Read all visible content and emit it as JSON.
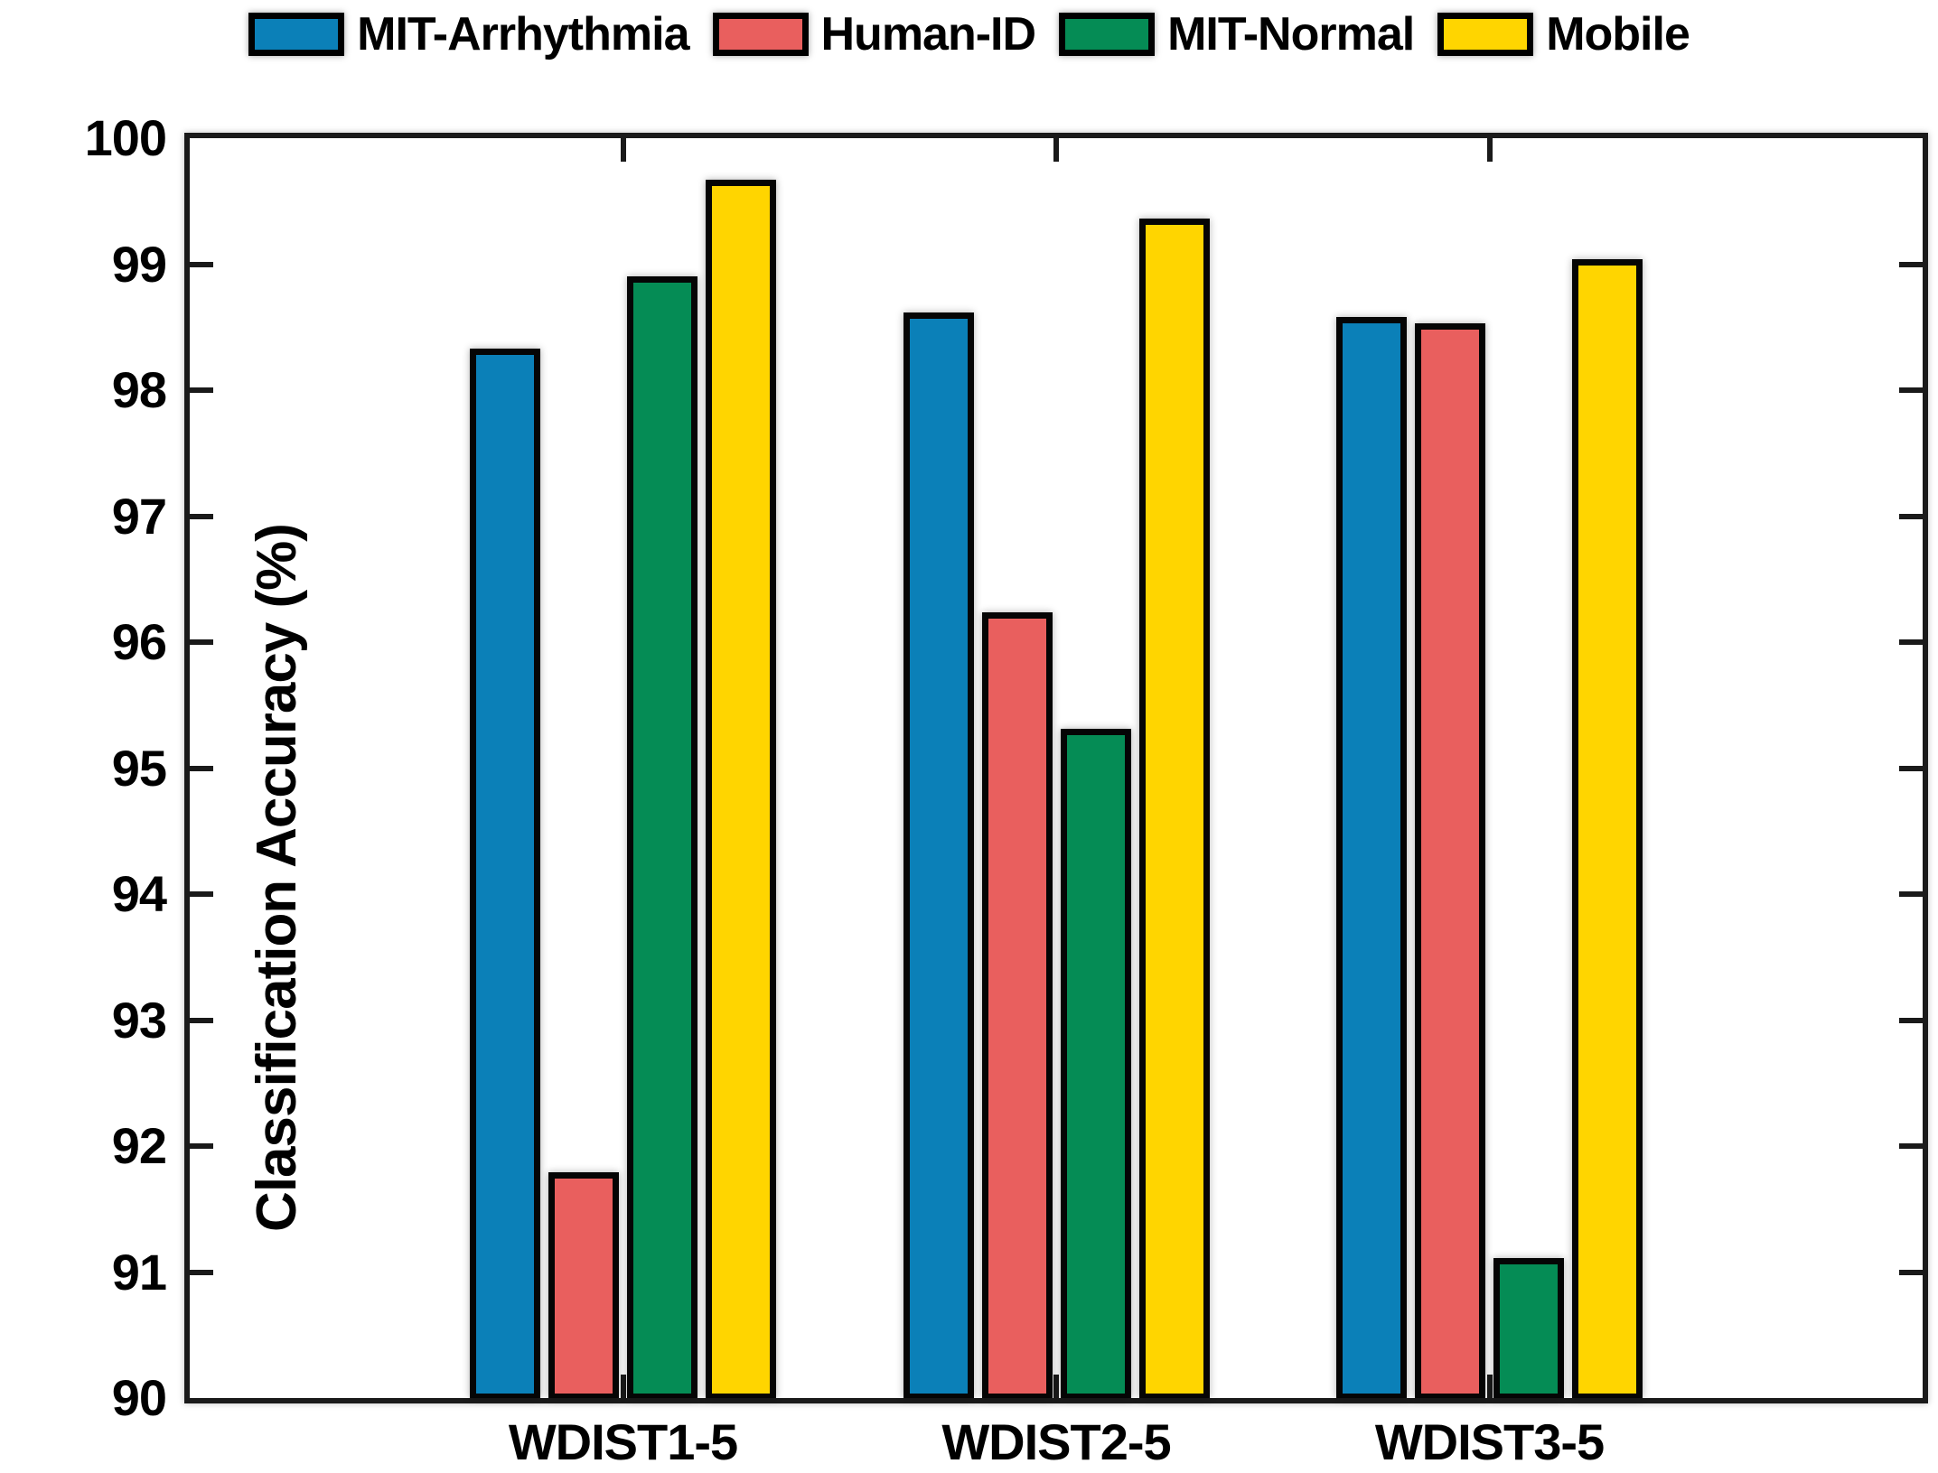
{
  "figure": {
    "background": "#ffffff",
    "axis_color": "#1a1a1a"
  },
  "chart_data": {
    "type": "bar",
    "title": "",
    "xlabel": "",
    "ylabel": "Classification Accuracy (%)",
    "categories": [
      "WDIST1-5",
      "WDIST2-5",
      "WDIST3-5"
    ],
    "series": [
      {
        "name": "MIT-Arrhythmia",
        "color": "#0b80b8",
        "values": [
          98.33,
          98.62,
          98.58
        ]
      },
      {
        "name": "Human-ID",
        "color": "#e95f5e",
        "values": [
          91.79,
          96.24,
          98.53
        ]
      },
      {
        "name": "MIT-Normal",
        "color": "#058c55",
        "values": [
          98.9,
          95.31,
          91.11
        ]
      },
      {
        "name": "Mobile",
        "color": "#ffd500",
        "values": [
          99.67,
          99.36,
          99.04
        ]
      }
    ],
    "ylim": [
      90,
      100
    ],
    "ytick_step": 1,
    "grid": false,
    "legend_position": "top",
    "bar_edge_color": "#000000"
  }
}
